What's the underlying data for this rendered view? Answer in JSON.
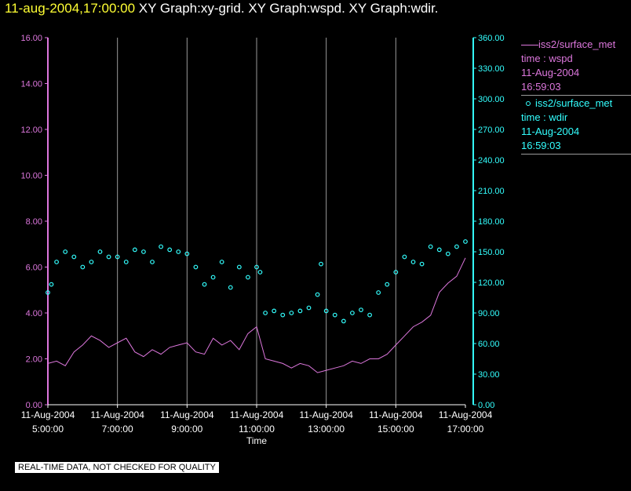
{
  "title": {
    "date": "11-aug-2004,17:00:00",
    "graphs": "XY Graph:xy-grid.  XY Graph:wspd.  XY Graph:wdir."
  },
  "legend": [
    {
      "line1": "iss2/surface_met",
      "line2": "time : wspd",
      "line3": "11-Aug-2004",
      "line4": "16:59:03"
    },
    {
      "line1": "iss2/surface_met",
      "line2": "time : wdir",
      "line3": "11-Aug-2004",
      "line4": "16:59:03"
    }
  ],
  "quality_note": "REAL-TIME DATA, NOT CHECKED FOR QUALITY",
  "colors": {
    "background": "#000000",
    "wspd": "#dd77dd",
    "wdir": "#33ffff",
    "grid": "#9a9a9a",
    "title_date": "#ffff33",
    "axis_text": "#ffffff"
  },
  "chart_data": {
    "type": "line",
    "title": "11-aug-2004,17:00:00  XY Graph:xy-grid.  XY Graph:wspd.  XY Graph:wdir.",
    "xlabel": "Time",
    "x_range_hours": [
      5.0,
      17.0
    ],
    "x_ticks": [
      {
        "hour": 5,
        "date": "11-Aug-2004",
        "time": "5:00:00"
      },
      {
        "hour": 7,
        "date": "11-Aug-2004",
        "time": "7:00:00"
      },
      {
        "hour": 9,
        "date": "11-Aug-2004",
        "time": "9:00:00"
      },
      {
        "hour": 11,
        "date": "11-Aug-2004",
        "time": "11:00:00"
      },
      {
        "hour": 13,
        "date": "11-Aug-2004",
        "time": "13:00:00"
      },
      {
        "hour": 15,
        "date": "11-Aug-2004",
        "time": "15:00:00"
      },
      {
        "hour": 17,
        "date": "11-Aug-2004",
        "time": "17:00:00"
      }
    ],
    "y_left": {
      "ylim": [
        0,
        16
      ],
      "ticks": [
        "0.00",
        "2.00",
        "4.00",
        "6.00",
        "8.00",
        "10.00",
        "12.00",
        "14.00",
        "16.00"
      ]
    },
    "y_right": {
      "ylim": [
        0,
        360
      ],
      "ticks": [
        "0.00",
        "30.00",
        "60.00",
        "90.00",
        "120.00",
        "150.00",
        "180.00",
        "210.00",
        "240.00",
        "270.00",
        "300.00",
        "330.00",
        "360.00"
      ]
    },
    "series": [
      {
        "name": "wspd",
        "axis": "left",
        "style": "line",
        "x": [
          5.0,
          5.25,
          5.5,
          5.75,
          6.0,
          6.25,
          6.5,
          6.75,
          7.0,
          7.25,
          7.5,
          7.75,
          8.0,
          8.25,
          8.5,
          8.75,
          9.0,
          9.25,
          9.5,
          9.75,
          10.0,
          10.25,
          10.5,
          10.75,
          11.0,
          11.25,
          11.5,
          11.75,
          12.0,
          12.25,
          12.5,
          12.75,
          13.0,
          13.25,
          13.5,
          13.75,
          14.0,
          14.25,
          14.5,
          14.75,
          15.0,
          15.25,
          15.5,
          15.75,
          16.0,
          16.25,
          16.5,
          16.75,
          17.0
        ],
        "y": [
          1.8,
          1.9,
          1.7,
          2.3,
          2.6,
          3.0,
          2.8,
          2.5,
          2.7,
          2.9,
          2.3,
          2.1,
          2.4,
          2.2,
          2.5,
          2.6,
          2.7,
          2.3,
          2.2,
          2.9,
          2.6,
          2.8,
          2.4,
          3.1,
          3.4,
          2.0,
          1.9,
          1.8,
          1.6,
          1.8,
          1.7,
          1.4,
          1.5,
          1.6,
          1.7,
          1.9,
          1.8,
          2.0,
          2.0,
          2.2,
          2.6,
          3.0,
          3.4,
          3.6,
          3.9,
          4.9,
          5.3,
          5.6,
          6.4
        ]
      },
      {
        "name": "wdir",
        "axis": "right",
        "style": "circles",
        "x": [
          5.0,
          5.1,
          5.25,
          5.5,
          5.75,
          6.0,
          6.25,
          6.5,
          6.75,
          7.0,
          7.25,
          7.5,
          7.75,
          8.0,
          8.25,
          8.5,
          8.75,
          9.0,
          9.25,
          9.5,
          9.75,
          10.0,
          10.25,
          10.5,
          10.75,
          11.0,
          11.1,
          11.25,
          11.5,
          11.75,
          12.0,
          12.25,
          12.5,
          12.75,
          12.85,
          13.0,
          13.25,
          13.5,
          13.75,
          14.0,
          14.25,
          14.5,
          14.75,
          15.0,
          15.25,
          15.5,
          15.75,
          16.0,
          16.25,
          16.5,
          16.75,
          17.0
        ],
        "y": [
          110,
          118,
          140,
          150,
          145,
          135,
          140,
          150,
          145,
          145,
          140,
          152,
          150,
          140,
          155,
          152,
          150,
          148,
          135,
          118,
          125,
          140,
          115,
          135,
          125,
          135,
          130,
          90,
          92,
          88,
          90,
          92,
          95,
          108,
          138,
          92,
          88,
          82,
          90,
          93,
          88,
          110,
          118,
          130,
          145,
          140,
          138,
          155,
          152,
          148,
          155,
          160
        ]
      }
    ]
  }
}
